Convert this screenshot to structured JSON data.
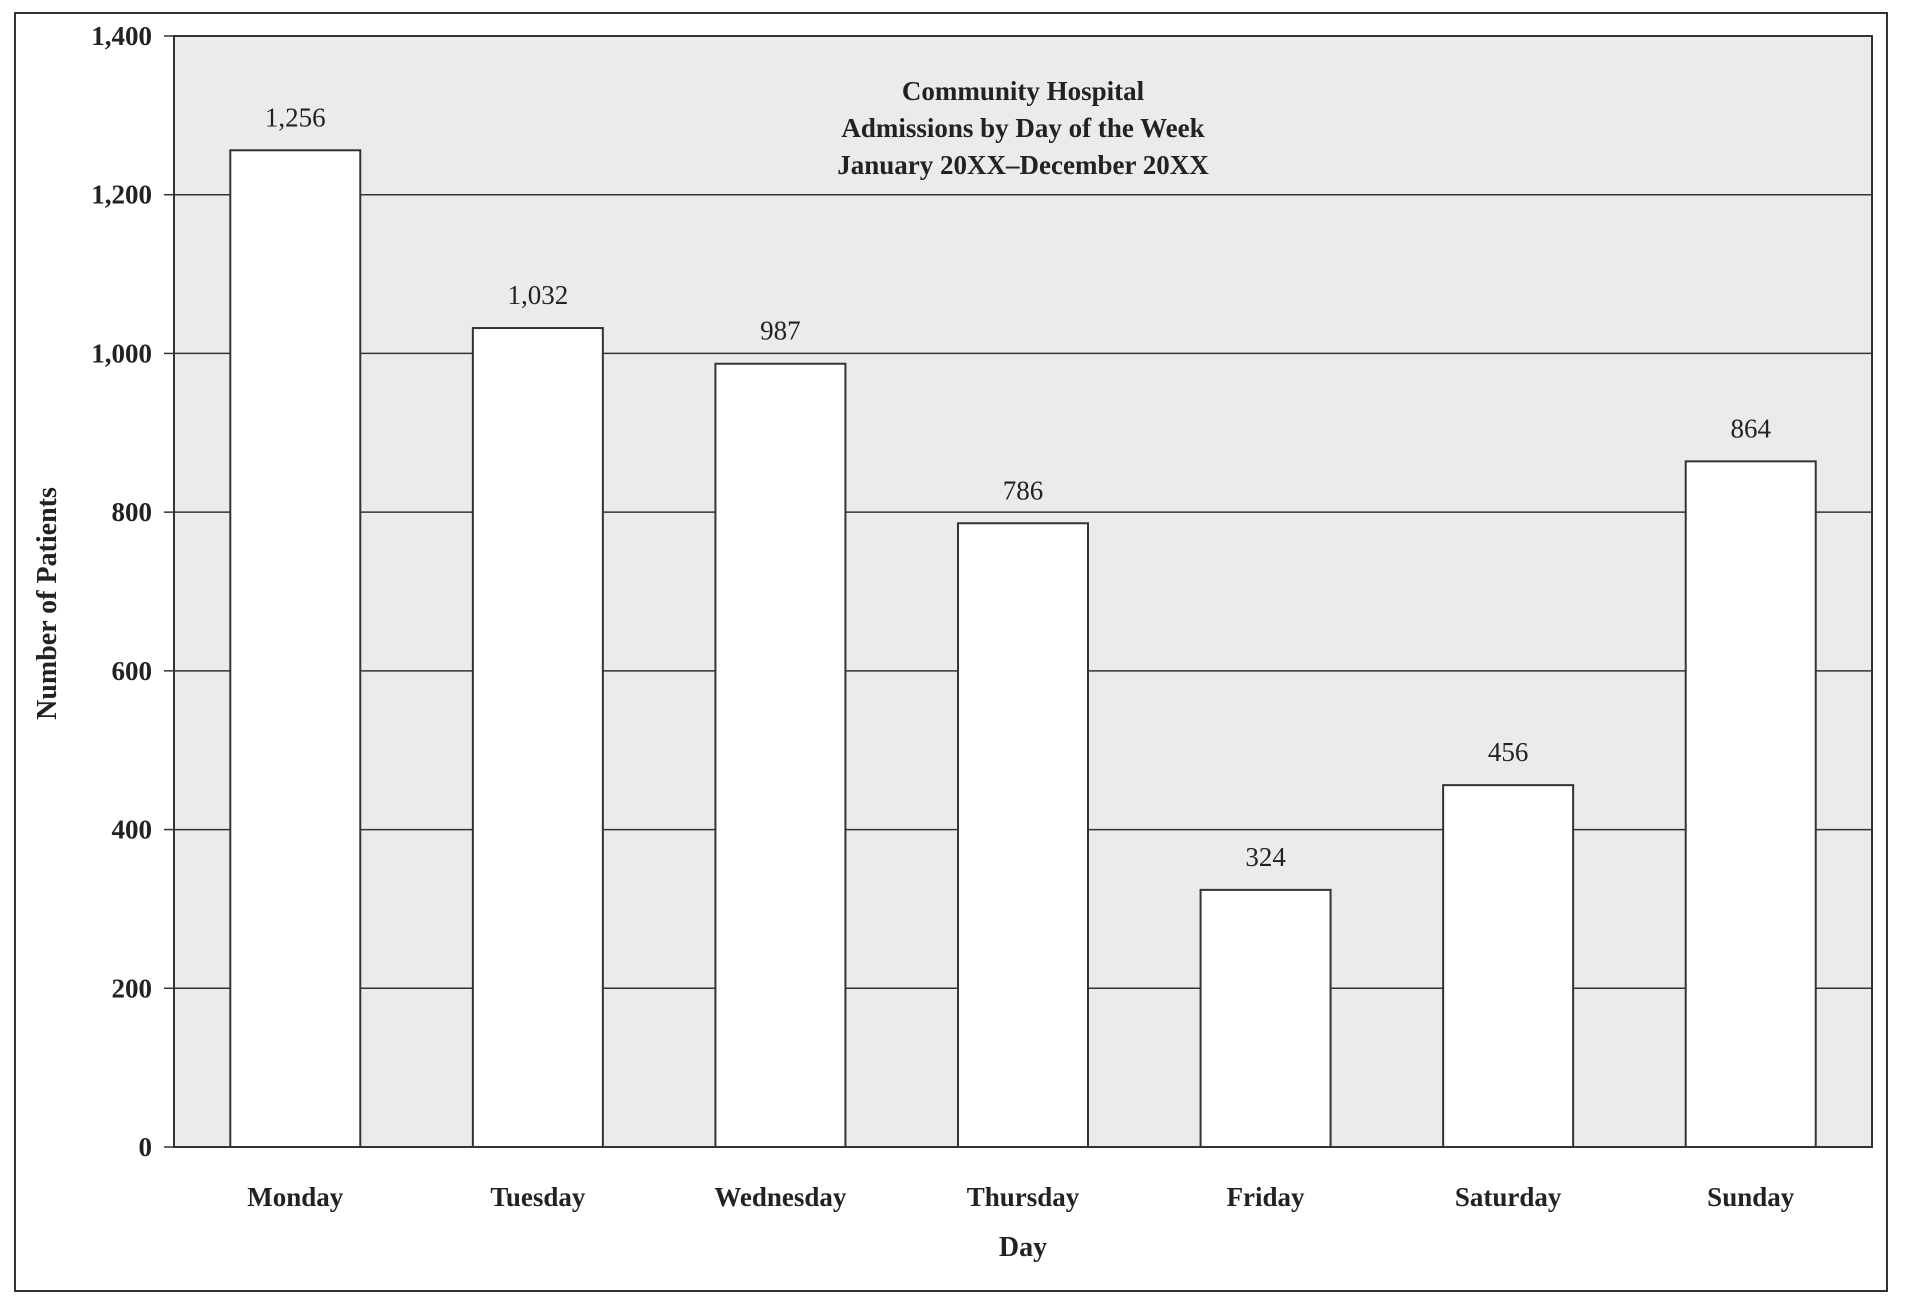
{
  "chart_data": {
    "type": "bar",
    "title_lines": [
      "Community Hospital",
      "Admissions by Day of the Week",
      "January 20XX–December 20XX"
    ],
    "xlabel": "Day",
    "ylabel": "Number of Patients",
    "categories": [
      "Monday",
      "Tuesday",
      "Wednesday",
      "Thursday",
      "Friday",
      "Saturday",
      "Sunday"
    ],
    "values": [
      1256,
      1032,
      987,
      786,
      324,
      456,
      864
    ],
    "value_labels": [
      "1,256",
      "1,032",
      "987",
      "786",
      "324",
      "456",
      "864"
    ],
    "ylim": [
      0,
      1400
    ],
    "yticks": [
      0,
      200,
      400,
      600,
      800,
      1000,
      1200,
      1400
    ],
    "ytick_labels": [
      "0",
      "200",
      "400",
      "600",
      "800",
      "1,000",
      "1,200",
      "1,400"
    ],
    "grid": true,
    "colors": {
      "plot_background": "#ebebeb",
      "bar_fill": "#ffffff",
      "line": "#333333"
    }
  }
}
